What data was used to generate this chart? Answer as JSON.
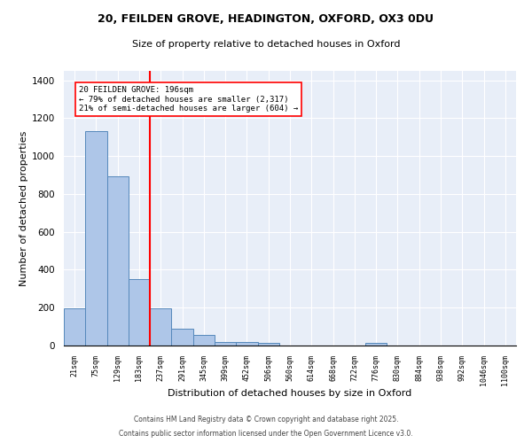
{
  "title_line1": "20, FEILDEN GROVE, HEADINGTON, OXFORD, OX3 0DU",
  "title_line2": "Size of property relative to detached houses in Oxford",
  "xlabel": "Distribution of detached houses by size in Oxford",
  "ylabel": "Number of detached properties",
  "bar_labels": [
    "21sqm",
    "75sqm",
    "129sqm",
    "183sqm",
    "237sqm",
    "291sqm",
    "345sqm",
    "399sqm",
    "452sqm",
    "506sqm",
    "560sqm",
    "614sqm",
    "668sqm",
    "722sqm",
    "776sqm",
    "830sqm",
    "884sqm",
    "938sqm",
    "992sqm",
    "1046sqm",
    "1100sqm"
  ],
  "bar_values": [
    195,
    1130,
    895,
    350,
    195,
    90,
    55,
    20,
    20,
    12,
    0,
    0,
    0,
    0,
    12,
    0,
    0,
    0,
    0,
    0,
    0
  ],
  "bar_color": "#aec6e8",
  "bar_edge_color": "#5588bb",
  "vline_x": 3.5,
  "vline_color": "red",
  "annotation_text": "20 FEILDEN GROVE: 196sqm\n← 79% of detached houses are smaller (2,317)\n21% of semi-detached houses are larger (604) →",
  "annotation_box_color": "white",
  "annotation_box_edge": "red",
  "ylim": [
    0,
    1450
  ],
  "yticks": [
    0,
    200,
    400,
    600,
    800,
    1000,
    1200,
    1400
  ],
  "bg_color": "#e8eef8",
  "grid_color": "white",
  "footer_line1": "Contains HM Land Registry data © Crown copyright and database right 2025.",
  "footer_line2": "Contains public sector information licensed under the Open Government Licence v3.0."
}
